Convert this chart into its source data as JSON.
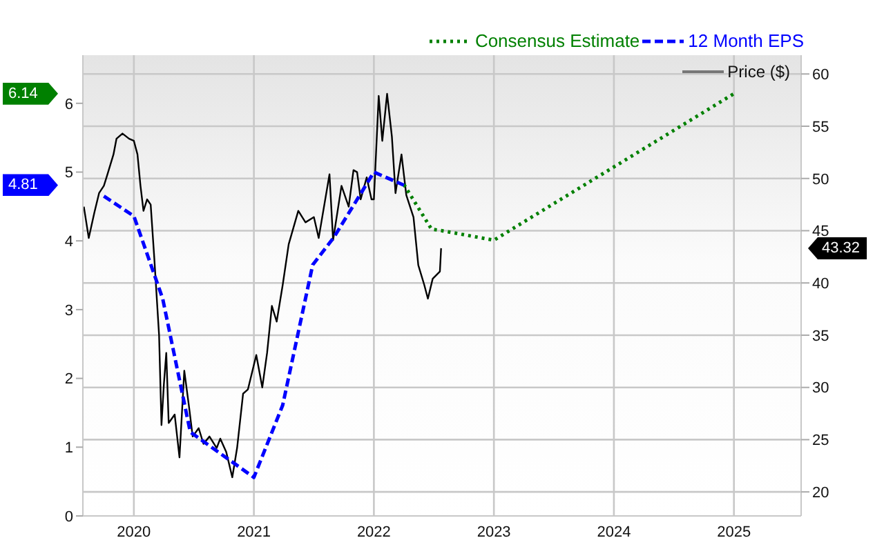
{
  "chart_data": {
    "type": "line",
    "legend": "top right",
    "grid": true,
    "xlim": [
      2019.575,
      2025.56
    ],
    "xticks": [
      2020,
      2021,
      2022,
      2023,
      2024,
      2025
    ],
    "ylim": [
      0,
      6.7
    ],
    "yticks": [
      0,
      1,
      2,
      3,
      4,
      5,
      6
    ],
    "y2lim": [
      17.7,
      61.8
    ],
    "y2ticks": [
      20,
      25,
      30,
      35,
      40,
      45,
      50,
      55,
      60
    ],
    "annotations": [
      "6.14",
      "4.81",
      "43.32"
    ],
    "series": [
      {
        "name": "Consensus Estimate",
        "color": "#008000",
        "line_style": "dotted",
        "x": [
          2022.25,
          2022.48,
          2022.56,
          2023.0,
          2025.0
        ],
        "values": [
          4.82,
          4.17,
          4.15,
          4.01,
          6.14
        ]
      },
      {
        "name": "12 Month EPS",
        "color": "#0000ff",
        "line_style": "dashed",
        "x": [
          2019.75,
          2020.0,
          2020.24,
          2020.47,
          2021.0,
          2021.24,
          2021.49,
          2021.67,
          2022.0,
          2022.25
        ],
        "values": [
          4.65,
          4.36,
          3.16,
          1.22,
          0.56,
          1.61,
          3.65,
          4.06,
          5.0,
          4.81
        ]
      },
      {
        "name": "Price ($)",
        "color": "#000000",
        "line_style": "solid",
        "axis": "y2",
        "x": [
          2019.583,
          2019.624,
          2019.67,
          2019.71,
          2019.75,
          2019.78,
          2019.83,
          2019.855,
          2019.905,
          2019.96,
          2020.0,
          2020.03,
          2020.055,
          2020.08,
          2020.11,
          2020.14,
          2020.17,
          2020.21,
          2020.23,
          2020.25,
          2020.27,
          2020.29,
          2020.34,
          2020.38,
          2020.42,
          2020.46,
          2020.49,
          2020.54,
          2020.58,
          2020.63,
          2020.69,
          2020.72,
          2020.77,
          2020.82,
          2020.86,
          2020.91,
          2020.95,
          2021.02,
          2021.07,
          2021.11,
          2021.15,
          2021.19,
          2021.24,
          2021.29,
          2021.37,
          2021.43,
          2021.5,
          2021.54,
          2021.63,
          2021.66,
          2021.73,
          2021.79,
          2021.83,
          2021.86,
          2021.89,
          2021.94,
          2021.98,
          2022.0,
          2022.04,
          2022.07,
          2022.11,
          2022.15,
          2022.18,
          2022.23,
          2022.27,
          2022.33,
          2022.37,
          2022.42,
          2022.45,
          2022.49,
          2022.55,
          2022.56
        ],
        "values": [
          47.3,
          44.3,
          46.7,
          48.6,
          49.3,
          50.4,
          52.3,
          53.8,
          54.3,
          53.8,
          53.6,
          52.3,
          49.3,
          46.9,
          48.0,
          47.5,
          42.4,
          35.0,
          26.4,
          30.3,
          33.3,
          26.6,
          27.4,
          23.3,
          31.6,
          28.1,
          25.3,
          26.1,
          24.6,
          25.3,
          24.2,
          25.1,
          23.8,
          21.4,
          24.2,
          29.4,
          29.8,
          33.1,
          30.0,
          33.3,
          37.8,
          36.3,
          39.8,
          43.7,
          46.9,
          45.8,
          46.3,
          44.3,
          50.4,
          44.1,
          49.3,
          47.3,
          50.8,
          50.6,
          48.0,
          50.1,
          48.0,
          48.0,
          57.9,
          53.6,
          58.1,
          54.0,
          48.6,
          52.3,
          48.4,
          46.3,
          41.7,
          39.8,
          38.5,
          40.4,
          41.1,
          43.32
        ]
      }
    ]
  }
}
